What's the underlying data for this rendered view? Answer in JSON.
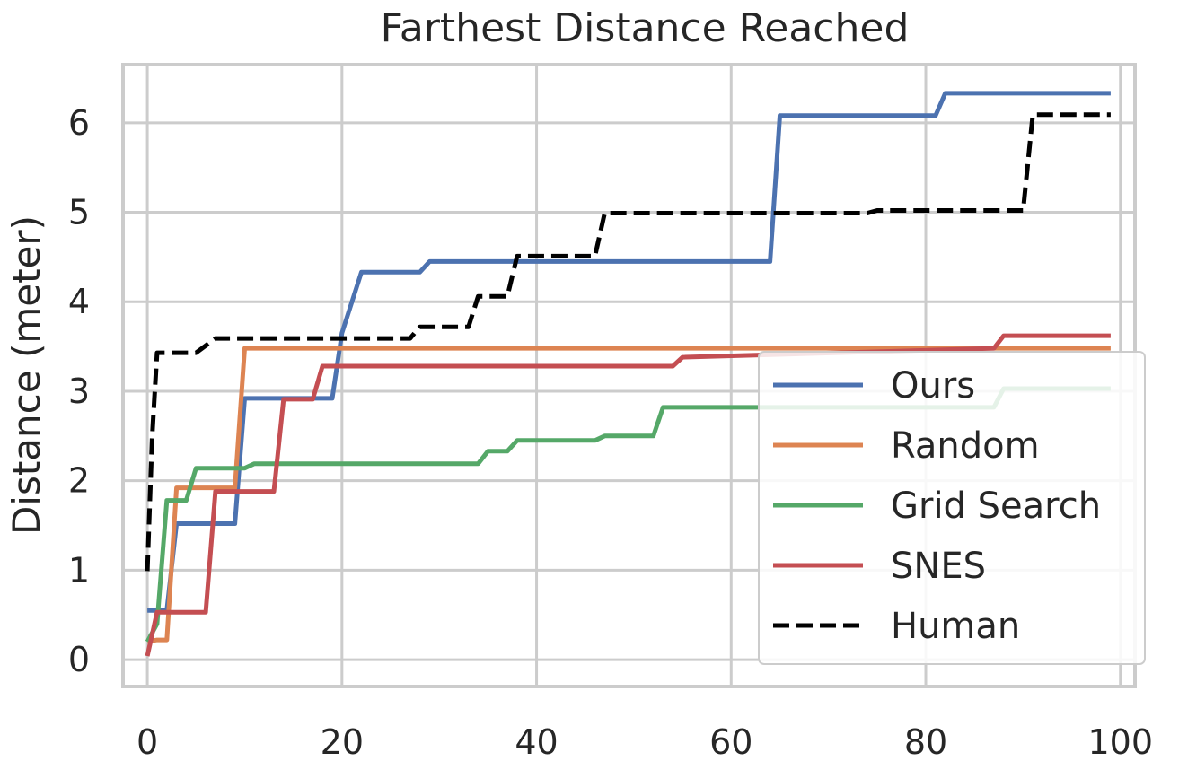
{
  "chart_data": {
    "type": "line",
    "title": "Farthest Distance Reached",
    "xlabel": "",
    "ylabel": "Distance (meter)",
    "xlim": [
      -2.5,
      101.5
    ],
    "ylim": [
      -0.3,
      6.65
    ],
    "xticks": [
      0,
      20,
      40,
      60,
      80,
      100
    ],
    "yticks": [
      0,
      1,
      2,
      3,
      4,
      5,
      6
    ],
    "grid": true,
    "legend_position": "lower-right",
    "series": [
      {
        "name": "Ours",
        "color": "#4c72b0",
        "dash": "solid",
        "x": [
          0,
          2,
          3,
          9,
          10,
          19,
          20,
          22,
          28,
          29,
          64,
          65,
          81,
          82,
          99
        ],
        "y": [
          0.55,
          0.55,
          1.52,
          1.52,
          2.92,
          2.92,
          3.65,
          4.33,
          4.33,
          4.45,
          4.45,
          6.08,
          6.08,
          6.33,
          6.33
        ]
      },
      {
        "name": "Random",
        "color": "#dd8452",
        "dash": "solid",
        "x": [
          0,
          1,
          2,
          3,
          9,
          10,
          99
        ],
        "y": [
          0.2,
          0.22,
          0.22,
          1.92,
          1.92,
          3.48,
          3.48
        ]
      },
      {
        "name": "Grid Search",
        "color": "#55a868",
        "dash": "solid",
        "x": [
          0,
          1,
          2,
          4,
          5,
          10,
          11,
          34,
          35,
          37,
          38,
          46,
          47,
          52,
          53,
          87,
          88,
          99
        ],
        "y": [
          0.2,
          0.4,
          1.78,
          1.78,
          2.14,
          2.14,
          2.19,
          2.19,
          2.33,
          2.33,
          2.45,
          2.45,
          2.5,
          2.5,
          2.82,
          2.82,
          3.03,
          3.03
        ]
      },
      {
        "name": "SNES",
        "color": "#c44e52",
        "dash": "solid",
        "x": [
          0,
          1,
          6,
          7,
          13,
          14,
          17,
          18,
          54,
          55,
          87,
          88,
          99
        ],
        "y": [
          0.04,
          0.53,
          0.53,
          1.88,
          1.88,
          2.91,
          2.91,
          3.28,
          3.28,
          3.38,
          3.48,
          3.62,
          3.62
        ]
      },
      {
        "name": "Human",
        "color": "#000000",
        "dash": "dashed",
        "x": [
          0,
          0.5,
          1,
          5,
          7,
          27,
          28,
          33,
          34,
          37,
          38,
          46,
          47,
          74,
          75,
          90,
          91,
          99
        ],
        "y": [
          0.99,
          2.5,
          3.43,
          3.43,
          3.59,
          3.59,
          3.72,
          3.72,
          4.06,
          4.06,
          4.51,
          4.51,
          4.99,
          4.99,
          5.02,
          5.02,
          6.09,
          6.09
        ]
      }
    ]
  }
}
